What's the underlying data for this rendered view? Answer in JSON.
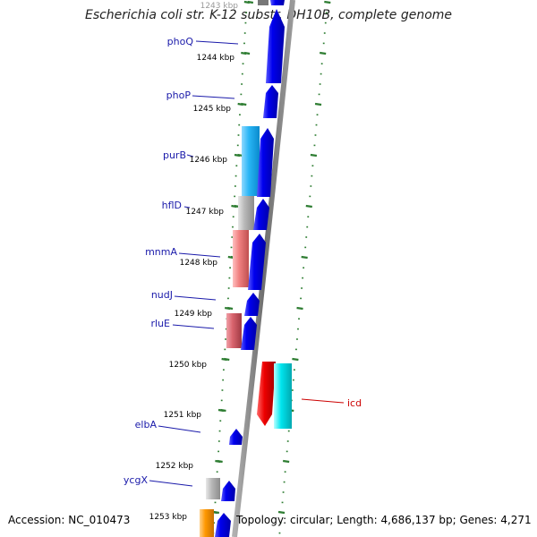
{
  "title": "Escherichia coli str. K-12 substr. DH10B, complete genome",
  "footer": {
    "accession": "Accession: NC_010473",
    "summary": "Topology: circular; Length: 4,686,137 bp; Genes: 4,271"
  },
  "colors": {
    "background": "#ffffff",
    "ruler_tick": "#2e7d32",
    "backbone": "#808080",
    "gene_label": "#1a1aaa",
    "highlight_label": "#cc0000"
  },
  "position_labels": [
    "1243 kbp",
    "1244 kbp",
    "1245 kbp",
    "1246 kbp",
    "1247 kbp",
    "1248 kbp",
    "1249 kbp",
    "1250 kbp",
    "1251 kbp",
    "1252 kbp",
    "1253 kbp"
  ],
  "genes": [
    {
      "name": "phoQ",
      "color": "#1a1aaa"
    },
    {
      "name": "phoP",
      "color": "#1a1aaa"
    },
    {
      "name": "purB",
      "color": "#1a1aaa"
    },
    {
      "name": "hflD",
      "color": "#1a1aaa"
    },
    {
      "name": "mnmA",
      "color": "#1a1aaa"
    },
    {
      "name": "nudJ",
      "color": "#1a1aaa"
    },
    {
      "name": "rluE",
      "color": "#1a1aaa"
    },
    {
      "name": "icd",
      "color": "#cc0000"
    },
    {
      "name": "elbA",
      "color": "#1a1aaa"
    },
    {
      "name": "ycgX",
      "color": "#1a1aaa"
    }
  ],
  "feature_colors": {
    "cds": "#0000ee",
    "gene_light_blue": "#29b6f6",
    "gene_grey": "#b0b0b0",
    "gene_salmon": "#f08080",
    "gene_rose": "#d9646e",
    "gene_red": "#ee0000",
    "gene_cyan": "#00e5ee",
    "gene_orange": "#ff9800"
  }
}
